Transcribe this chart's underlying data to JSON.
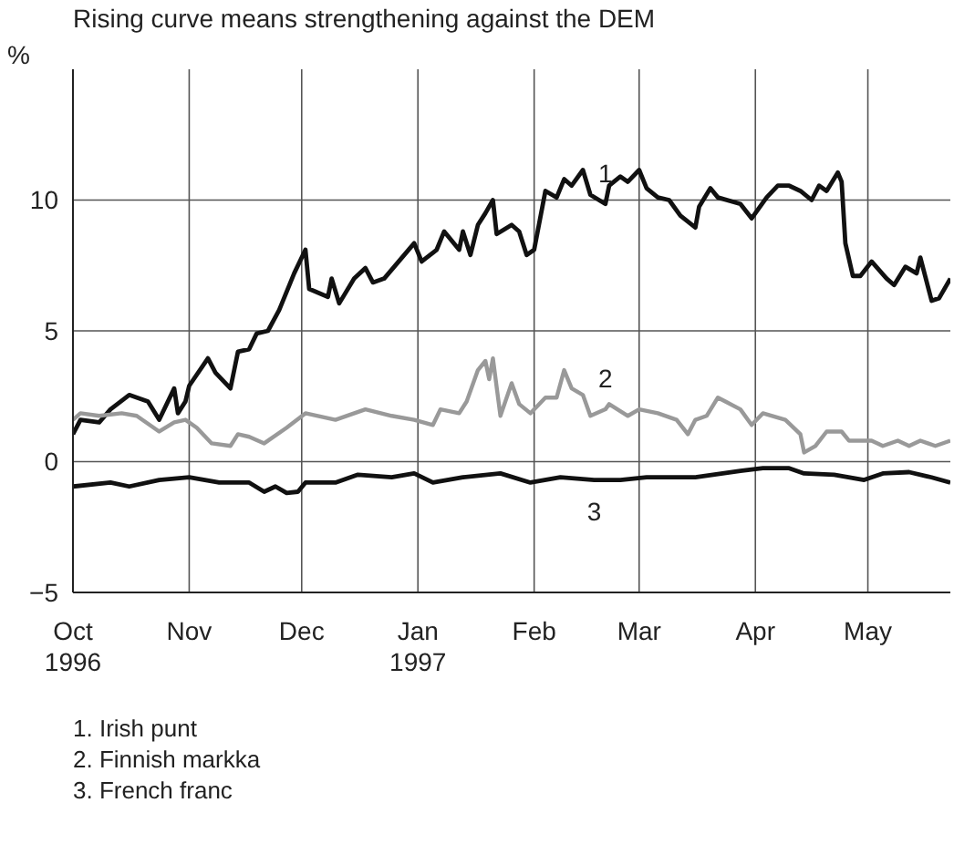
{
  "chart_data": {
    "type": "line",
    "title": "Rising curve means strengthening against the DEM",
    "ylabel": "%",
    "xlim": [
      "1996-10-01",
      "1997-05-23"
    ],
    "xticks": [
      {
        "value": "1996-10-01",
        "label": "Oct\n1996"
      },
      {
        "value": "1996-11-01",
        "label": "Nov"
      },
      {
        "value": "1996-12-01",
        "label": "Dec"
      },
      {
        "value": "1997-01-01",
        "label": "Jan\n1997"
      },
      {
        "value": "1997-02-01",
        "label": "Feb"
      },
      {
        "value": "1997-03-01",
        "label": "Mar"
      },
      {
        "value": "1997-04-01",
        "label": "Apr"
      },
      {
        "value": "1997-05-01",
        "label": "May"
      }
    ],
    "ylim": [
      -5,
      15
    ],
    "yticks": [
      -5,
      0,
      5,
      10
    ],
    "grid": true,
    "marker": "none",
    "line_style": "solid",
    "series": [
      {
        "name": "1",
        "color": "#111111",
        "x": [
          "1996-10-01",
          "1996-10-03",
          "1996-10-08",
          "1996-10-11",
          "1996-10-16",
          "1996-10-21",
          "1996-10-24",
          "1996-10-28",
          "1996-10-29",
          "1996-10-31",
          "1996-11-01",
          "1996-11-06",
          "1996-11-08",
          "1996-11-12",
          "1996-11-14",
          "1996-11-17",
          "1996-11-19",
          "1996-11-22",
          "1996-11-25",
          "1996-11-29",
          "1996-12-02",
          "1996-12-03",
          "1996-12-08",
          "1996-12-09",
          "1996-12-11",
          "1996-12-15",
          "1996-12-18",
          "1996-12-20",
          "1996-12-23",
          "1996-12-31",
          "1997-01-02",
          "1997-01-06",
          "1997-01-08",
          "1997-01-12",
          "1997-01-13",
          "1997-01-15",
          "1997-01-17",
          "1997-01-19",
          "1997-01-21",
          "1997-01-22",
          "1997-01-26",
          "1997-01-28",
          "1997-01-30",
          "1997-02-01",
          "1997-02-04",
          "1997-02-07",
          "1997-02-09",
          "1997-02-11",
          "1997-02-14",
          "1997-02-16",
          "1997-02-20",
          "1997-02-21",
          "1997-02-24",
          "1997-02-26",
          "1997-03-01",
          "1997-03-03",
          "1997-03-06",
          "1997-03-09",
          "1997-03-12",
          "1997-03-16",
          "1997-03-17",
          "1997-03-20",
          "1997-03-22",
          "1997-03-28",
          "1997-03-31",
          "1997-04-04",
          "1997-04-07",
          "1997-04-10",
          "1997-04-13",
          "1997-04-16",
          "1997-04-18",
          "1997-04-20",
          "1997-04-23",
          "1997-04-24",
          "1997-04-25",
          "1997-04-27",
          "1997-04-29",
          "1997-05-02",
          "1997-05-06",
          "1997-05-08",
          "1997-05-11",
          "1997-05-14",
          "1997-05-15",
          "1997-05-18",
          "1997-05-20",
          "1997-05-23"
        ],
        "values": [
          1.05,
          1.6,
          1.5,
          2.0,
          2.55,
          2.3,
          1.6,
          2.8,
          1.85,
          2.3,
          2.9,
          3.95,
          3.4,
          2.8,
          4.2,
          4.3,
          4.9,
          5.0,
          5.8,
          7.2,
          8.1,
          6.6,
          6.3,
          7.0,
          6.05,
          7.0,
          7.4,
          6.85,
          7.0,
          8.35,
          7.65,
          8.1,
          8.8,
          8.1,
          8.8,
          7.9,
          9.05,
          9.5,
          10.0,
          8.7,
          9.05,
          8.8,
          7.9,
          8.1,
          10.35,
          10.1,
          10.8,
          10.55,
          11.15,
          10.2,
          9.85,
          10.55,
          10.9,
          10.7,
          11.15,
          10.45,
          10.1,
          10.0,
          9.4,
          8.95,
          9.75,
          10.45,
          10.1,
          9.85,
          9.3,
          10.1,
          10.55,
          10.55,
          10.35,
          10.0,
          10.55,
          10.35,
          11.05,
          10.7,
          8.35,
          7.1,
          7.1,
          7.65,
          7.0,
          6.75,
          7.45,
          7.2,
          7.8,
          6.15,
          6.25,
          7.0
        ]
      },
      {
        "name": "2",
        "color": "#999999",
        "x": [
          "1996-10-01",
          "1996-10-03",
          "1996-10-08",
          "1996-10-14",
          "1996-10-18",
          "1996-10-24",
          "1996-10-28",
          "1996-10-31",
          "1996-11-03",
          "1996-11-07",
          "1996-11-12",
          "1996-11-14",
          "1996-11-17",
          "1996-11-21",
          "1996-11-27",
          "1996-12-02",
          "1996-12-10",
          "1996-12-18",
          "1996-12-25",
          "1996-12-31",
          "1997-01-05",
          "1997-01-07",
          "1997-01-12",
          "1997-01-14",
          "1997-01-17",
          "1997-01-19",
          "1997-01-20",
          "1997-01-21",
          "1997-01-23",
          "1997-01-26",
          "1997-01-28",
          "1997-01-31",
          "1997-02-04",
          "1997-02-07",
          "1997-02-09",
          "1997-02-11",
          "1997-02-14",
          "1997-02-16",
          "1997-02-20",
          "1997-02-21",
          "1997-02-26",
          "1997-03-01",
          "1997-03-06",
          "1997-03-11",
          "1997-03-14",
          "1997-03-16",
          "1997-03-19",
          "1997-03-22",
          "1997-03-24",
          "1997-03-28",
          "1997-03-31",
          "1997-04-03",
          "1997-04-09",
          "1997-04-13",
          "1997-04-14",
          "1997-04-17",
          "1997-04-20",
          "1997-04-24",
          "1997-04-26",
          "1997-05-02",
          "1997-05-05",
          "1997-05-09",
          "1997-05-12",
          "1997-05-15",
          "1997-05-19",
          "1997-05-23"
        ],
        "values": [
          1.6,
          1.85,
          1.75,
          1.85,
          1.75,
          1.15,
          1.5,
          1.6,
          1.3,
          0.7,
          0.6,
          1.05,
          0.95,
          0.7,
          1.3,
          1.85,
          1.6,
          2.0,
          1.75,
          1.6,
          1.4,
          2.0,
          1.85,
          2.3,
          3.5,
          3.85,
          3.15,
          3.95,
          1.75,
          3.0,
          2.2,
          1.85,
          2.45,
          2.45,
          3.5,
          2.8,
          2.55,
          1.75,
          2.0,
          2.2,
          1.75,
          2.0,
          1.85,
          1.6,
          1.05,
          1.6,
          1.75,
          2.45,
          2.3,
          2.0,
          1.4,
          1.85,
          1.6,
          1.05,
          0.35,
          0.6,
          1.15,
          1.15,
          0.8,
          0.8,
          0.6,
          0.8,
          0.6,
          0.8,
          0.6,
          0.8
        ]
      },
      {
        "name": "3",
        "color": "#111111",
        "x": [
          "1996-10-01",
          "1996-10-11",
          "1996-10-16",
          "1996-10-24",
          "1996-11-01",
          "1996-11-09",
          "1996-11-17",
          "1996-11-21",
          "1996-11-24",
          "1996-11-27",
          "1996-11-30",
          "1996-12-02",
          "1996-12-10",
          "1996-12-16",
          "1996-12-25",
          "1996-12-31",
          "1997-01-05",
          "1997-01-13",
          "1997-01-23",
          "1997-01-31",
          "1997-02-08",
          "1997-02-17",
          "1997-02-24",
          "1997-03-03",
          "1997-03-16",
          "1997-03-28",
          "1997-04-03",
          "1997-04-10",
          "1997-04-14",
          "1997-04-22",
          "1997-04-30",
          "1997-05-05",
          "1997-05-12",
          "1997-05-18",
          "1997-05-23"
        ],
        "values": [
          -0.95,
          -0.8,
          -0.95,
          -0.7,
          -0.6,
          -0.8,
          -0.8,
          -1.15,
          -0.95,
          -1.2,
          -1.15,
          -0.8,
          -0.8,
          -0.5,
          -0.6,
          -0.45,
          -0.8,
          -0.6,
          -0.45,
          -0.8,
          -0.6,
          -0.7,
          -0.7,
          -0.6,
          -0.6,
          -0.35,
          -0.25,
          -0.25,
          -0.45,
          -0.5,
          -0.7,
          -0.45,
          -0.4,
          -0.6,
          -0.8
        ]
      }
    ],
    "annotations": [
      "1. Irish punt",
      "2. Finnish markka",
      "3. French franc"
    ]
  }
}
